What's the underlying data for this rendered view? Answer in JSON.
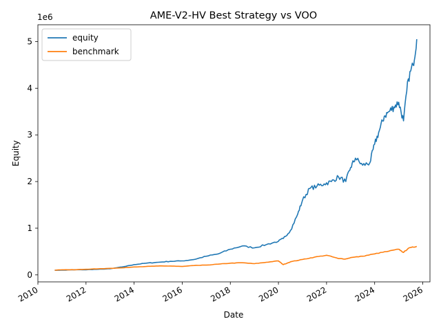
{
  "chart_data": {
    "type": "line",
    "title": "AME-V2-HV Best Strategy vs VOO",
    "xlabel": "Date",
    "ylabel": "Equity",
    "y_offset_label": "1e6",
    "y_scale_multiplier": 1000000,
    "xlim": [
      2010.0,
      2026.3
    ],
    "ylim": [
      -0.15,
      5.36
    ],
    "x_tick_values": [
      2010,
      2012,
      2014,
      2016,
      2018,
      2020,
      2022,
      2024,
      2026
    ],
    "x_tick_labels": [
      "2010",
      "2012",
      "2014",
      "2016",
      "2018",
      "2020",
      "2022",
      "2024",
      "2026"
    ],
    "y_tick_values": [
      0,
      1,
      2,
      3,
      4,
      5
    ],
    "y_tick_labels": [
      "0",
      "1",
      "2",
      "3",
      "4",
      "5"
    ],
    "grid": false,
    "legend_position": "upper-left",
    "series": [
      {
        "name": "equity",
        "color": "#1f77b4",
        "x": [
          2010.7,
          2011.0,
          2011.5,
          2012.0,
          2012.5,
          2013.0,
          2013.5,
          2014.0,
          2014.5,
          2015.0,
          2015.5,
          2016.0,
          2016.5,
          2017.0,
          2017.5,
          2018.0,
          2018.5,
          2019.0,
          2019.5,
          2020.0,
          2020.2,
          2020.5,
          2020.8,
          2021.0,
          2021.3,
          2021.6,
          2021.9,
          2022.2,
          2022.5,
          2022.8,
          2023.0,
          2023.2,
          2023.5,
          2023.8,
          2024.0,
          2024.2,
          2024.4,
          2024.6,
          2024.8,
          2025.0,
          2025.2,
          2025.4,
          2025.6,
          2025.75
        ],
        "y": [
          0.1,
          0.1,
          0.11,
          0.11,
          0.12,
          0.13,
          0.17,
          0.22,
          0.25,
          0.27,
          0.29,
          0.3,
          0.33,
          0.4,
          0.45,
          0.55,
          0.62,
          0.58,
          0.65,
          0.72,
          0.78,
          0.95,
          1.3,
          1.6,
          1.85,
          1.9,
          1.95,
          2.0,
          2.1,
          2.0,
          2.3,
          2.5,
          2.35,
          2.4,
          2.8,
          3.1,
          3.4,
          3.5,
          3.6,
          3.7,
          3.3,
          4.2,
          4.5,
          5.05
        ]
      },
      {
        "name": "benchmark",
        "color": "#ff7f0e",
        "x": [
          2010.7,
          2011.0,
          2011.5,
          2012.0,
          2012.5,
          2013.0,
          2013.5,
          2014.0,
          2014.5,
          2015.0,
          2015.5,
          2016.0,
          2016.5,
          2017.0,
          2017.5,
          2018.0,
          2018.5,
          2019.0,
          2019.5,
          2020.0,
          2020.2,
          2020.5,
          2021.0,
          2021.5,
          2022.0,
          2022.5,
          2022.8,
          2023.0,
          2023.5,
          2024.0,
          2024.5,
          2025.0,
          2025.2,
          2025.4,
          2025.75
        ],
        "y": [
          0.1,
          0.11,
          0.11,
          0.12,
          0.13,
          0.14,
          0.15,
          0.17,
          0.18,
          0.19,
          0.19,
          0.18,
          0.2,
          0.21,
          0.23,
          0.25,
          0.26,
          0.24,
          0.27,
          0.3,
          0.22,
          0.28,
          0.33,
          0.38,
          0.42,
          0.35,
          0.34,
          0.37,
          0.4,
          0.45,
          0.5,
          0.55,
          0.48,
          0.57,
          0.61
        ]
      }
    ]
  }
}
